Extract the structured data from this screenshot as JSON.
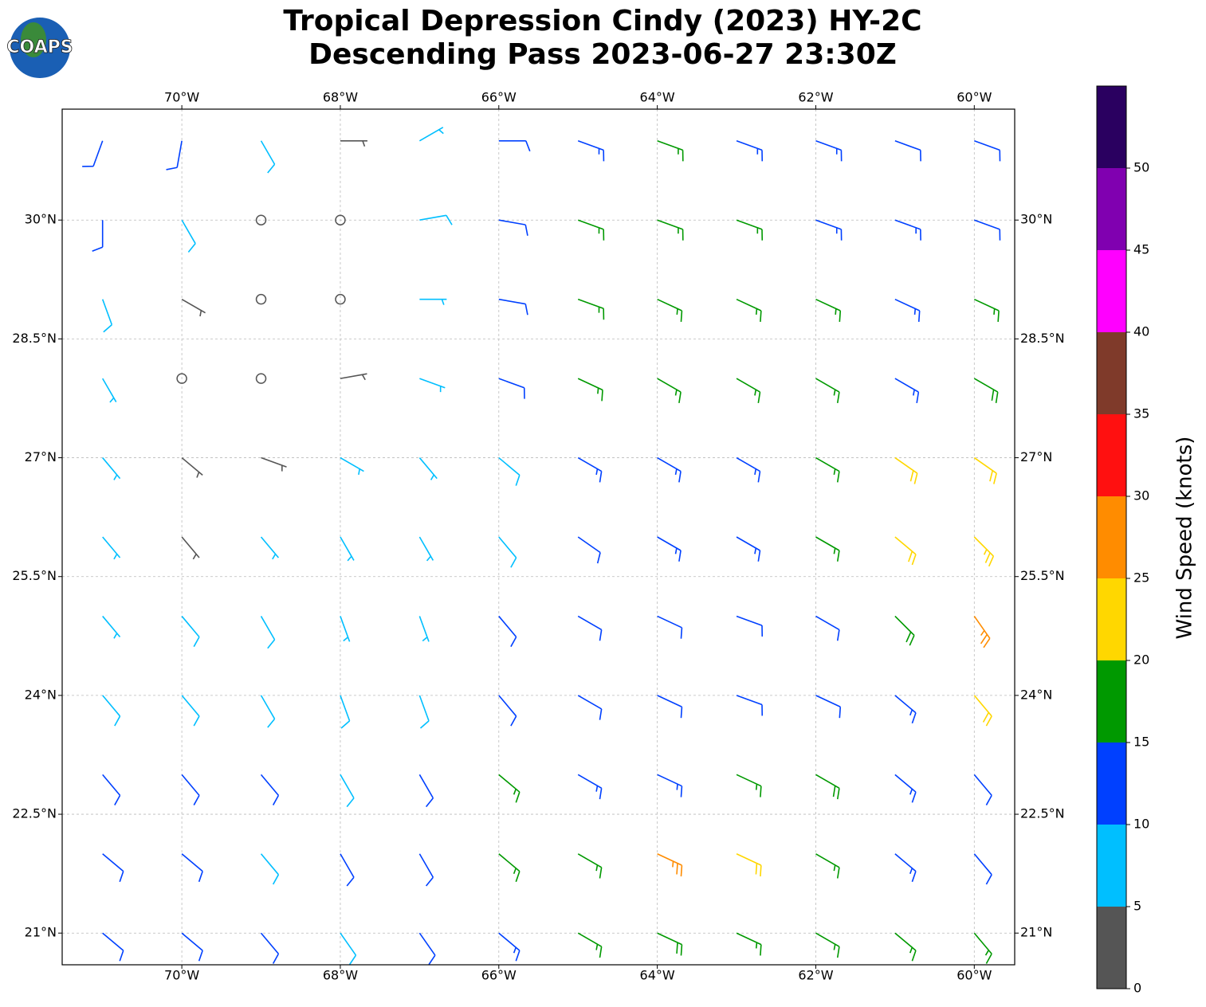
{
  "logo": "COAPS",
  "chart_data": {
    "type": "wind_barbs",
    "title": "Tropical Depression Cindy (2023) HY-2C",
    "subtitle": "Descending Pass 2023-06-27 23:30Z",
    "xlim": [
      -71.51,
      -59.49
    ],
    "ylim": [
      20.6,
      31.4
    ],
    "xticks": [
      {
        "value": -70,
        "label": "70°W"
      },
      {
        "value": -68,
        "label": "68°W"
      },
      {
        "value": -66,
        "label": "66°W"
      },
      {
        "value": -64,
        "label": "64°W"
      },
      {
        "value": -62,
        "label": "62°W"
      },
      {
        "value": -60,
        "label": "60°W"
      }
    ],
    "yticks": [
      {
        "value": 21,
        "label": "21°N"
      },
      {
        "value": 22.5,
        "label": "22.5°N"
      },
      {
        "value": 24,
        "label": "24°N"
      },
      {
        "value": 25.5,
        "label": "25.5°N"
      },
      {
        "value": 27,
        "label": "27°N"
      },
      {
        "value": 28.5,
        "label": "28.5°N"
      },
      {
        "value": 30,
        "label": "30°N"
      }
    ],
    "grid": true,
    "barbs": {
      "lon": [
        -71,
        -70,
        -69,
        -68,
        -67,
        -66,
        -65,
        -64,
        -63,
        -62,
        -61,
        -60
      ],
      "lat": [
        31,
        30,
        29,
        28,
        27,
        26,
        25,
        24,
        23,
        22,
        21
      ],
      "speed": [
        [
          11,
          12,
          8,
          3,
          7,
          10,
          14,
          16,
          14,
          13,
          12,
          11
        ],
        [
          12,
          8,
          2,
          2,
          8,
          11,
          15,
          17,
          16,
          14,
          13,
          12
        ],
        [
          8,
          3,
          1,
          2,
          7,
          11,
          16,
          17,
          17,
          15,
          14,
          16
        ],
        [
          6,
          2,
          2,
          3,
          6,
          10,
          15,
          17,
          16,
          15,
          14,
          18
        ],
        [
          6,
          3,
          3,
          5,
          7,
          9,
          13,
          14,
          14,
          16,
          21,
          22
        ],
        [
          7,
          4,
          6,
          7,
          7,
          9,
          12,
          13,
          13,
          15,
          21,
          24
        ],
        [
          7,
          8,
          8,
          7,
          7,
          10,
          11,
          12,
          10,
          12,
          18,
          26
        ],
        [
          8,
          9,
          8,
          9,
          9,
          12,
          12,
          11,
          11,
          12,
          14,
          21
        ],
        [
          11,
          10,
          12,
          9,
          12,
          16,
          13,
          14,
          17,
          19,
          14,
          12
        ],
        [
          12,
          12,
          9,
          10,
          11,
          15,
          16,
          25,
          22,
          16,
          13,
          12
        ],
        [
          10,
          11,
          11,
          9,
          10,
          13,
          16,
          18,
          16,
          15,
          16,
          17
        ]
      ],
      "direction": [
        [
          200,
          190,
          150,
          90,
          60,
          90,
          110,
          110,
          110,
          110,
          110,
          110
        ],
        [
          180,
          150,
          90,
          60,
          80,
          100,
          110,
          110,
          110,
          110,
          110,
          110
        ],
        [
          160,
          120,
          60,
          60,
          90,
          100,
          110,
          115,
          115,
          115,
          115,
          115
        ],
        [
          150,
          120,
          70,
          80,
          110,
          110,
          115,
          120,
          120,
          120,
          120,
          120
        ],
        [
          140,
          130,
          110,
          120,
          140,
          130,
          120,
          120,
          120,
          120,
          125,
          125
        ],
        [
          140,
          140,
          140,
          150,
          150,
          140,
          125,
          120,
          120,
          120,
          130,
          135
        ],
        [
          140,
          140,
          150,
          160,
          160,
          140,
          120,
          115,
          110,
          120,
          135,
          145
        ],
        [
          140,
          140,
          150,
          160,
          160,
          140,
          120,
          115,
          110,
          115,
          130,
          140
        ],
        [
          140,
          140,
          140,
          150,
          150,
          130,
          120,
          115,
          115,
          120,
          130,
          140
        ],
        [
          130,
          130,
          140,
          150,
          150,
          130,
          120,
          115,
          115,
          120,
          130,
          140
        ],
        [
          130,
          130,
          140,
          145,
          145,
          130,
          120,
          115,
          115,
          120,
          130,
          140
        ]
      ]
    },
    "colorbar": {
      "label": "Wind Speed (knots)",
      "levels": [
        0,
        5,
        10,
        15,
        20,
        25,
        30,
        35,
        40,
        45,
        50,
        55
      ],
      "colors": [
        "#555555",
        "#00bfff",
        "#0040ff",
        "#009900",
        "#ffd700",
        "#ff8c00",
        "#ff1010",
        "#7f3a2a",
        "#ff00ff",
        "#8000b0",
        "#2a0060"
      ],
      "ticks": [
        0,
        5,
        10,
        15,
        20,
        25,
        30,
        35,
        40,
        45,
        50
      ]
    }
  }
}
